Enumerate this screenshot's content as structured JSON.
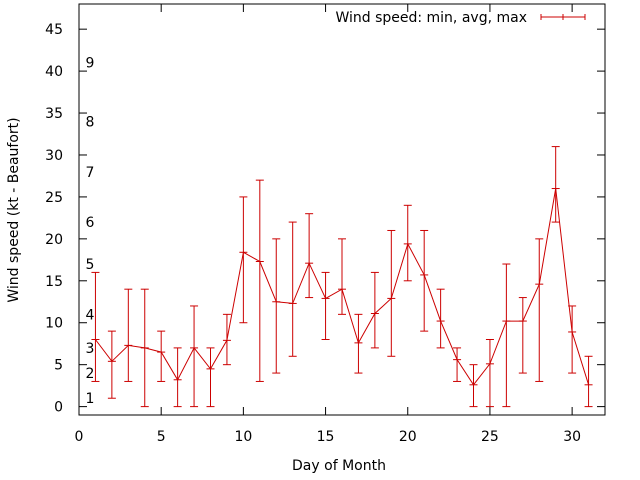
{
  "chart_data": {
    "type": "line",
    "title": "",
    "xlabel": "Day of Month",
    "ylabel": "Wind speed (kt - Beaufort)",
    "xlim": [
      0,
      32
    ],
    "ylim": [
      -1,
      48
    ],
    "grid": false,
    "legend_position": "top-right",
    "xticks": [
      0,
      5,
      10,
      15,
      20,
      25,
      30
    ],
    "yticks": [
      0,
      5,
      10,
      15,
      20,
      25,
      30,
      35,
      40,
      45
    ],
    "series": [
      {
        "name": "Wind speed: min, avg, max",
        "color": "#cc0000",
        "x": [
          1,
          2,
          3,
          4,
          5,
          6,
          7,
          8,
          9,
          10,
          11,
          12,
          13,
          14,
          15,
          16,
          17,
          18,
          19,
          20,
          21,
          22,
          23,
          24,
          25,
          26,
          27,
          28,
          29,
          30,
          31
        ],
        "avg": [
          8,
          5.4,
          7.3,
          7,
          6.5,
          3.2,
          7,
          4.5,
          7.9,
          18.4,
          17.3,
          12.5,
          12.3,
          17.1,
          12.9,
          14,
          7.6,
          11.1,
          12.9,
          19.4,
          15.7,
          10.2,
          5.6,
          2.6,
          5.1,
          10.2,
          10.2,
          14.6,
          26,
          8.9,
          2.6
        ],
        "min": [
          3,
          1,
          3,
          0,
          3,
          0,
          0,
          0,
          5,
          10,
          3,
          4,
          6,
          13,
          8,
          11,
          4,
          7,
          6,
          15,
          9,
          7,
          3,
          0,
          0,
          0,
          4,
          3,
          22,
          4,
          0
        ],
        "max": [
          16,
          9,
          14,
          14,
          9,
          7,
          12,
          7,
          11,
          25,
          27,
          20,
          22,
          23,
          16,
          20,
          11,
          16,
          21,
          24,
          21,
          14,
          7,
          5,
          8,
          17,
          13,
          20,
          31,
          12,
          6
        ]
      }
    ],
    "beaufort_labels": [
      {
        "label": "1",
        "value": 1
      },
      {
        "label": "2",
        "value": 4
      },
      {
        "label": "3",
        "value": 7
      },
      {
        "label": "4",
        "value": 11
      },
      {
        "label": "5",
        "value": 17
      },
      {
        "label": "6",
        "value": 22
      },
      {
        "label": "7",
        "value": 28
      },
      {
        "label": "8",
        "value": 34
      },
      {
        "label": "9",
        "value": 41
      }
    ]
  }
}
